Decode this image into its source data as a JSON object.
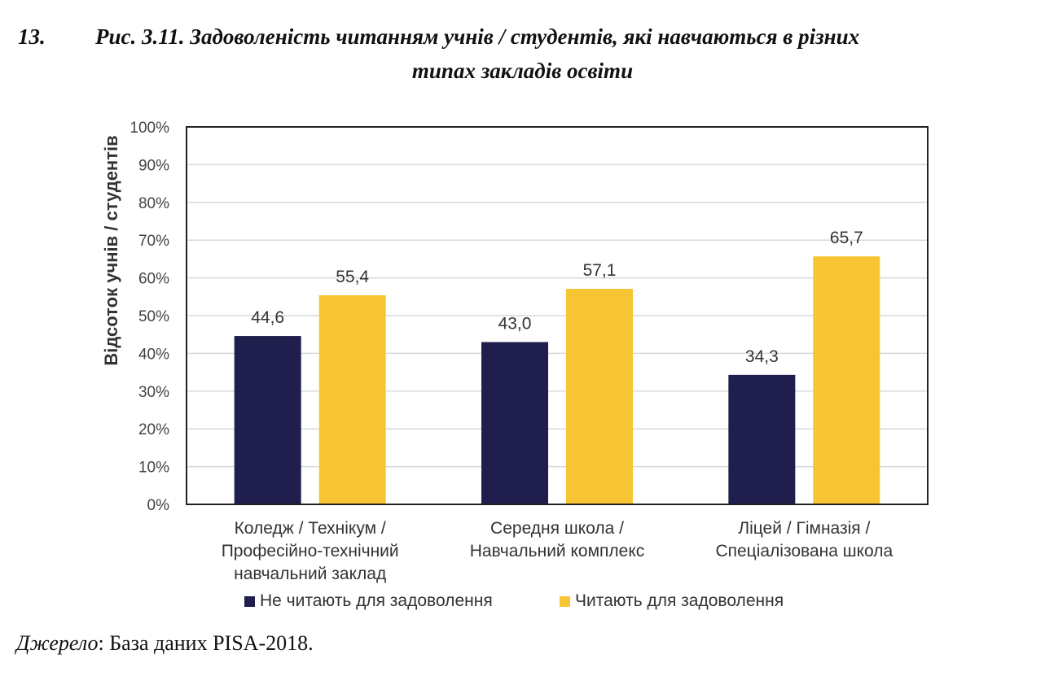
{
  "figure": {
    "number": "13.",
    "title_line1": "Рис. 3.11. Задоволеність читанням учнів / студентів, які навчаються в різних",
    "title_line2": "типах закладів освіти"
  },
  "source": {
    "label": "Джерело",
    "separator": ": ",
    "text": "База даних PISA-2018."
  },
  "chart_data": {
    "type": "bar",
    "ylabel": "Відсоток учнів / студентів",
    "xlabel": "",
    "ylim": [
      0,
      100
    ],
    "y_ticks": [
      "0%",
      "10%",
      "20%",
      "30%",
      "40%",
      "50%",
      "60%",
      "70%",
      "80%",
      "90%",
      "100%"
    ],
    "grid": true,
    "legend_position": "bottom",
    "categories": [
      [
        "Коледж / Технікум /",
        "Професійно-технічний",
        "навчальний заклад"
      ],
      [
        "Середня школа /",
        "Навчальний комплекс"
      ],
      [
        "Ліцей / Гімназія /",
        "Спеціалізована школа"
      ]
    ],
    "series": [
      {
        "name": "Не читають для задоволення",
        "color": "#1f1e4d",
        "values": [
          44.6,
          43.0,
          34.3
        ],
        "labels": [
          "44,6",
          "43,0",
          "34,3"
        ]
      },
      {
        "name": "Читають для задоволення",
        "color": "#f7c533",
        "values": [
          55.4,
          57.1,
          65.7
        ],
        "labels": [
          "55,4",
          "57,1",
          "65,7"
        ]
      }
    ]
  }
}
